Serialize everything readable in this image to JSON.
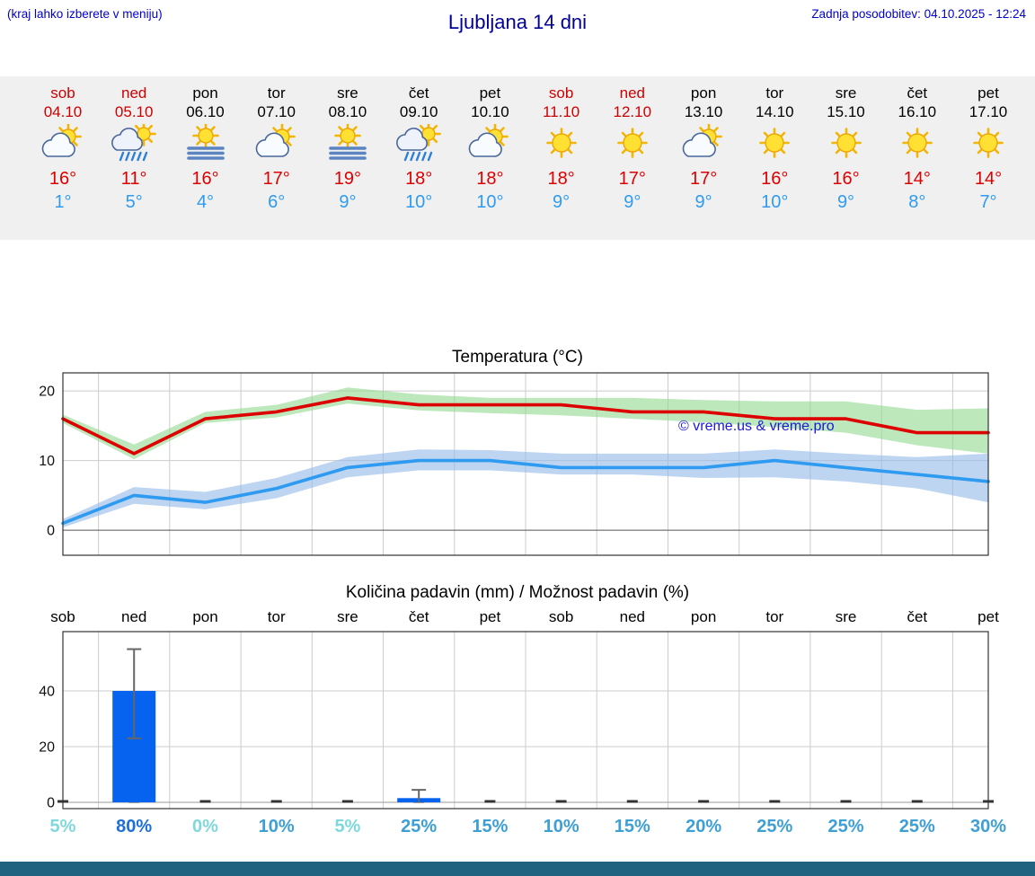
{
  "header": {
    "hint": "(kraj lahko izberete v meniju)",
    "title": "Ljubljana 14 dni",
    "updated": "Zadnja posodobitev: 04.10.2025 - 12:24"
  },
  "colors": {
    "weekend": "#cc0000",
    "weekday": "#000000",
    "tmax": "#dd0000",
    "tmin": "#2e9bf0",
    "accent_blue": "#0000cc",
    "title_blue": "#000099",
    "bar": "#0563f0",
    "band_green": "#8fd88f",
    "band_blue": "#93b9ea",
    "prob_low": "#7fd8dc",
    "prob_mid": "#3e9fd4",
    "prob_high": "#1e6fd6",
    "footer": "#1f6380",
    "strip_bg": "#f0f0f0"
  },
  "days": [
    {
      "name": "sob",
      "date": "04.10",
      "weekend": true,
      "icon": "sun-cloud",
      "tmax": "16°",
      "tmin": "1°"
    },
    {
      "name": "ned",
      "date": "05.10",
      "weekend": true,
      "icon": "sun-rain",
      "tmax": "11°",
      "tmin": "5°"
    },
    {
      "name": "pon",
      "date": "06.10",
      "weekend": false,
      "icon": "sun-fog",
      "tmax": "16°",
      "tmin": "4°"
    },
    {
      "name": "tor",
      "date": "07.10",
      "weekend": false,
      "icon": "sun-cloud",
      "tmax": "17°",
      "tmin": "6°"
    },
    {
      "name": "sre",
      "date": "08.10",
      "weekend": false,
      "icon": "sun-fog",
      "tmax": "19°",
      "tmin": "9°"
    },
    {
      "name": "čet",
      "date": "09.10",
      "weekend": false,
      "icon": "sun-rain",
      "tmax": "18°",
      "tmin": "10°"
    },
    {
      "name": "pet",
      "date": "10.10",
      "weekend": false,
      "icon": "sun-cloud",
      "tmax": "18°",
      "tmin": "10°"
    },
    {
      "name": "sob",
      "date": "11.10",
      "weekend": true,
      "icon": "sunny",
      "tmax": "18°",
      "tmin": "9°"
    },
    {
      "name": "ned",
      "date": "12.10",
      "weekend": true,
      "icon": "sunny",
      "tmax": "17°",
      "tmin": "9°"
    },
    {
      "name": "pon",
      "date": "13.10",
      "weekend": false,
      "icon": "sun-cloud",
      "tmax": "17°",
      "tmin": "9°"
    },
    {
      "name": "tor",
      "date": "14.10",
      "weekend": false,
      "icon": "sunny",
      "tmax": "16°",
      "tmin": "10°"
    },
    {
      "name": "sre",
      "date": "15.10",
      "weekend": false,
      "icon": "sunny",
      "tmax": "16°",
      "tmin": "9°"
    },
    {
      "name": "čet",
      "date": "16.10",
      "weekend": false,
      "icon": "sunny",
      "tmax": "14°",
      "tmin": "8°"
    },
    {
      "name": "pet",
      "date": "17.10",
      "weekend": false,
      "icon": "sunny",
      "tmax": "14°",
      "tmin": "7°"
    }
  ],
  "chart_data": [
    {
      "type": "line",
      "title": "Temperatura (°C)",
      "watermark": "© vreme.us & vreme.pro",
      "ylim": [
        -3.6,
        22.6
      ],
      "yticks": [
        0,
        10,
        20
      ],
      "categories": [
        "sob",
        "ned",
        "pon",
        "tor",
        "sre",
        "čet",
        "pet",
        "sob",
        "ned",
        "pon",
        "tor",
        "sre",
        "čet",
        "pet"
      ],
      "series": [
        {
          "name": "max-temperature",
          "color": "#dd0000",
          "band_color": "#8fd88f",
          "values": [
            16,
            11,
            16,
            17,
            19,
            18,
            18,
            18,
            17,
            17,
            16,
            16,
            14,
            14
          ],
          "band_high": [
            16.6,
            12.3,
            17,
            18,
            20.5,
            19.5,
            19,
            19,
            19,
            18.7,
            18.5,
            18.5,
            17.3,
            17.5
          ],
          "band_low": [
            15.4,
            10.2,
            15.4,
            16.2,
            18.2,
            17.2,
            16.8,
            16.5,
            16,
            15.5,
            14.8,
            14,
            12.2,
            11
          ]
        },
        {
          "name": "min-temperature",
          "color": "#2e9bf0",
          "band_color": "#93b9ea",
          "values": [
            1,
            5,
            4,
            6,
            9,
            10,
            10,
            9,
            9,
            9,
            10,
            9,
            8,
            7
          ],
          "band_high": [
            1.6,
            6.2,
            5.5,
            7.5,
            10.5,
            11.6,
            11.5,
            11,
            11,
            11,
            11.6,
            11,
            10.5,
            11
          ],
          "band_low": [
            0.4,
            3.8,
            3,
            4.6,
            7.6,
            8.6,
            8.6,
            8,
            8,
            7.5,
            7.6,
            7,
            6,
            4
          ]
        }
      ]
    },
    {
      "type": "bar",
      "title": "Količina padavin (mm) / Možnost padavin (%)",
      "categories": [
        "sob",
        "ned",
        "pon",
        "tor",
        "sre",
        "čet",
        "pet",
        "sob",
        "ned",
        "pon",
        "tor",
        "sre",
        "čet",
        "pet"
      ],
      "values": [
        0,
        40,
        0,
        0,
        0,
        1.5,
        0,
        0,
        0,
        0,
        0,
        0,
        0,
        0
      ],
      "error_low": [
        0,
        23,
        0,
        0,
        0,
        0,
        0,
        0,
        0,
        0,
        0,
        0,
        0,
        0
      ],
      "error_high": [
        0,
        55,
        0,
        0,
        0,
        4.5,
        0,
        0,
        0,
        0,
        0,
        0,
        0,
        0
      ],
      "probabilities": [
        {
          "label": "5%",
          "level": "low"
        },
        {
          "label": "80%",
          "level": "high"
        },
        {
          "label": "0%",
          "level": "low"
        },
        {
          "label": "10%",
          "level": "mid"
        },
        {
          "label": "5%",
          "level": "low"
        },
        {
          "label": "25%",
          "level": "mid"
        },
        {
          "label": "15%",
          "level": "mid"
        },
        {
          "label": "10%",
          "level": "mid"
        },
        {
          "label": "15%",
          "level": "mid"
        },
        {
          "label": "20%",
          "level": "mid"
        },
        {
          "label": "25%",
          "level": "mid"
        },
        {
          "label": "25%",
          "level": "mid"
        },
        {
          "label": "25%",
          "level": "mid"
        },
        {
          "label": "30%",
          "level": "mid"
        }
      ],
      "ylim": [
        0,
        60
      ],
      "yticks": [
        0,
        20,
        40
      ]
    }
  ]
}
